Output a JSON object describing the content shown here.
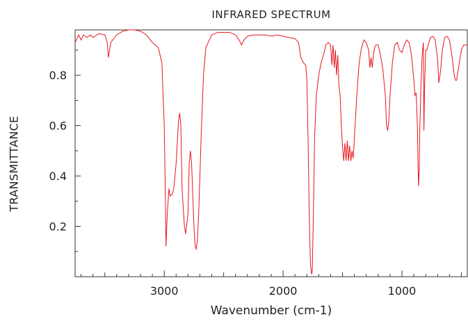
{
  "chart_data": {
    "type": "line",
    "title": "INFRARED SPECTRUM",
    "xlabel": "Wavenumber (cm-1)",
    "ylabel": "TRANSMITTANCE",
    "xlim": [
      3750,
      450
    ],
    "ylim": [
      0,
      0.98
    ],
    "x_ticks": [
      3000,
      2000,
      1000
    ],
    "y_ticks": [
      0.2,
      0.4,
      0.6,
      0.8
    ],
    "line_color": "#e8141b",
    "grid": false,
    "series": [
      {
        "points": [
          [
            3750,
            0.93
          ],
          [
            3720,
            0.96
          ],
          [
            3700,
            0.94
          ],
          [
            3680,
            0.96
          ],
          [
            3650,
            0.95
          ],
          [
            3620,
            0.96
          ],
          [
            3600,
            0.95
          ],
          [
            3550,
            0.965
          ],
          [
            3500,
            0.96
          ],
          [
            3480,
            0.93
          ],
          [
            3470,
            0.87
          ],
          [
            3450,
            0.93
          ],
          [
            3400,
            0.96
          ],
          [
            3350,
            0.975
          ],
          [
            3300,
            0.98
          ],
          [
            3250,
            0.98
          ],
          [
            3200,
            0.975
          ],
          [
            3150,
            0.96
          ],
          [
            3100,
            0.93
          ],
          [
            3050,
            0.91
          ],
          [
            3020,
            0.85
          ],
          [
            3000,
            0.6
          ],
          [
            2990,
            0.3
          ],
          [
            2985,
            0.12
          ],
          [
            2975,
            0.25
          ],
          [
            2960,
            0.35
          ],
          [
            2950,
            0.32
          ],
          [
            2930,
            0.33
          ],
          [
            2920,
            0.35
          ],
          [
            2900,
            0.45
          ],
          [
            2880,
            0.62
          ],
          [
            2870,
            0.65
          ],
          [
            2860,
            0.6
          ],
          [
            2850,
            0.35
          ],
          [
            2830,
            0.2
          ],
          [
            2820,
            0.17
          ],
          [
            2800,
            0.25
          ],
          [
            2790,
            0.45
          ],
          [
            2780,
            0.5
          ],
          [
            2770,
            0.45
          ],
          [
            2750,
            0.2
          ],
          [
            2740,
            0.12
          ],
          [
            2730,
            0.11
          ],
          [
            2720,
            0.15
          ],
          [
            2710,
            0.25
          ],
          [
            2690,
            0.55
          ],
          [
            2670,
            0.8
          ],
          [
            2650,
            0.91
          ],
          [
            2600,
            0.96
          ],
          [
            2550,
            0.97
          ],
          [
            2500,
            0.97
          ],
          [
            2450,
            0.97
          ],
          [
            2400,
            0.96
          ],
          [
            2370,
            0.94
          ],
          [
            2350,
            0.92
          ],
          [
            2330,
            0.94
          ],
          [
            2300,
            0.955
          ],
          [
            2250,
            0.96
          ],
          [
            2200,
            0.96
          ],
          [
            2150,
            0.96
          ],
          [
            2100,
            0.955
          ],
          [
            2050,
            0.96
          ],
          [
            2000,
            0.955
          ],
          [
            1950,
            0.95
          ],
          [
            1900,
            0.945
          ],
          [
            1870,
            0.93
          ],
          [
            1850,
            0.87
          ],
          [
            1830,
            0.85
          ],
          [
            1810,
            0.84
          ],
          [
            1800,
            0.78
          ],
          [
            1790,
            0.55
          ],
          [
            1780,
            0.25
          ],
          [
            1770,
            0.05
          ],
          [
            1760,
            0.01
          ],
          [
            1755,
            0.02
          ],
          [
            1745,
            0.25
          ],
          [
            1735,
            0.55
          ],
          [
            1720,
            0.72
          ],
          [
            1700,
            0.8
          ],
          [
            1680,
            0.85
          ],
          [
            1660,
            0.88
          ],
          [
            1640,
            0.92
          ],
          [
            1620,
            0.93
          ],
          [
            1600,
            0.92
          ],
          [
            1590,
            0.84
          ],
          [
            1580,
            0.92
          ],
          [
            1570,
            0.83
          ],
          [
            1560,
            0.9
          ],
          [
            1550,
            0.8
          ],
          [
            1540,
            0.88
          ],
          [
            1530,
            0.76
          ],
          [
            1520,
            0.72
          ],
          [
            1510,
            0.6
          ],
          [
            1500,
            0.52
          ],
          [
            1490,
            0.46
          ],
          [
            1480,
            0.53
          ],
          [
            1470,
            0.46
          ],
          [
            1460,
            0.54
          ],
          [
            1450,
            0.46
          ],
          [
            1440,
            0.52
          ],
          [
            1430,
            0.46
          ],
          [
            1420,
            0.5
          ],
          [
            1410,
            0.47
          ],
          [
            1400,
            0.55
          ],
          [
            1380,
            0.72
          ],
          [
            1360,
            0.85
          ],
          [
            1340,
            0.91
          ],
          [
            1320,
            0.94
          ],
          [
            1300,
            0.93
          ],
          [
            1280,
            0.9
          ],
          [
            1270,
            0.83
          ],
          [
            1260,
            0.87
          ],
          [
            1250,
            0.83
          ],
          [
            1240,
            0.88
          ],
          [
            1230,
            0.91
          ],
          [
            1220,
            0.92
          ],
          [
            1200,
            0.92
          ],
          [
            1180,
            0.88
          ],
          [
            1160,
            0.82
          ],
          [
            1140,
            0.72
          ],
          [
            1130,
            0.6
          ],
          [
            1120,
            0.58
          ],
          [
            1110,
            0.62
          ],
          [
            1100,
            0.72
          ],
          [
            1080,
            0.85
          ],
          [
            1060,
            0.92
          ],
          [
            1040,
            0.93
          ],
          [
            1020,
            0.9
          ],
          [
            1000,
            0.89
          ],
          [
            980,
            0.92
          ],
          [
            960,
            0.94
          ],
          [
            940,
            0.93
          ],
          [
            920,
            0.88
          ],
          [
            900,
            0.78
          ],
          [
            890,
            0.72
          ],
          [
            880,
            0.73
          ],
          [
            870,
            0.6
          ],
          [
            865,
            0.45
          ],
          [
            860,
            0.36
          ],
          [
            855,
            0.42
          ],
          [
            850,
            0.58
          ],
          [
            840,
            0.75
          ],
          [
            830,
            0.88
          ],
          [
            820,
            0.93
          ],
          [
            815,
            0.58
          ],
          [
            810,
            0.75
          ],
          [
            800,
            0.9
          ],
          [
            790,
            0.9
          ],
          [
            780,
            0.92
          ],
          [
            760,
            0.95
          ],
          [
            740,
            0.955
          ],
          [
            720,
            0.94
          ],
          [
            700,
            0.86
          ],
          [
            690,
            0.77
          ],
          [
            680,
            0.8
          ],
          [
            670,
            0.84
          ],
          [
            660,
            0.9
          ],
          [
            640,
            0.95
          ],
          [
            620,
            0.955
          ],
          [
            600,
            0.94
          ],
          [
            580,
            0.88
          ],
          [
            560,
            0.8
          ],
          [
            550,
            0.78
          ],
          [
            540,
            0.78
          ],
          [
            520,
            0.84
          ],
          [
            500,
            0.9
          ],
          [
            480,
            0.92
          ],
          [
            460,
            0.92
          ],
          [
            450,
            0.92
          ]
        ]
      }
    ]
  }
}
